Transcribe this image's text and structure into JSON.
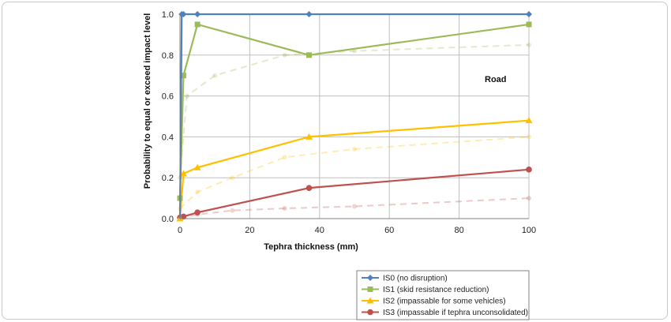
{
  "chart_data": {
    "type": "line",
    "title": "",
    "xlabel": "Tephra thickness (mm)",
    "ylabel": "Probability to equal or exceed impact level",
    "xlim": [
      0,
      100
    ],
    "ylim": [
      0,
      1
    ],
    "xticks": [
      "0",
      "20",
      "40",
      "60",
      "80",
      "100"
    ],
    "yticks": [
      "0.0",
      "0.2",
      "0.4",
      "0.6",
      "0.8",
      "1.0"
    ],
    "annotation": "Road",
    "grid": true,
    "legend": "bottom-right, below plot",
    "series": [
      {
        "name": "IS0 (no disruption)",
        "color": "#4f81bd",
        "marker": "diamond",
        "x": [
          0,
          0.5,
          1,
          5,
          37,
          100
        ],
        "y": [
          0,
          1.0,
          1.0,
          1.0,
          1.0,
          1.0
        ]
      },
      {
        "name": "IS1 (skid resistance reduction)",
        "color": "#9bbb59",
        "marker": "square",
        "x": [
          0,
          1,
          5,
          37,
          100
        ],
        "y": [
          0.1,
          0.7,
          0.95,
          0.8,
          0.95
        ]
      },
      {
        "name": "IS2 (impassable for some vehicles)",
        "color": "#ffc000",
        "marker": "triangle",
        "x": [
          0,
          1,
          5,
          37,
          100
        ],
        "y": [
          0.0,
          0.22,
          0.25,
          0.4,
          0.48
        ]
      },
      {
        "name": "IS3 (impassable if tephra unconsolidated)",
        "color": "#c0504d",
        "marker": "circle",
        "x": [
          0,
          1,
          5,
          37,
          100
        ],
        "y": [
          0.005,
          0.01,
          0.03,
          0.15,
          0.24
        ]
      }
    ],
    "faded_series": [
      {
        "color": "#9bbb59",
        "x": [
          0,
          2,
          10,
          30,
          50,
          100
        ],
        "y": [
          0.2,
          0.6,
          0.7,
          0.8,
          0.82,
          0.85
        ]
      },
      {
        "color": "#ffc000",
        "x": [
          0,
          5,
          15,
          30,
          50,
          100
        ],
        "y": [
          0.05,
          0.13,
          0.2,
          0.3,
          0.34,
          0.4
        ]
      },
      {
        "color": "#c0504d",
        "x": [
          0,
          5,
          15,
          30,
          50,
          100
        ],
        "y": [
          0.0,
          0.02,
          0.04,
          0.05,
          0.06,
          0.1
        ]
      }
    ]
  }
}
